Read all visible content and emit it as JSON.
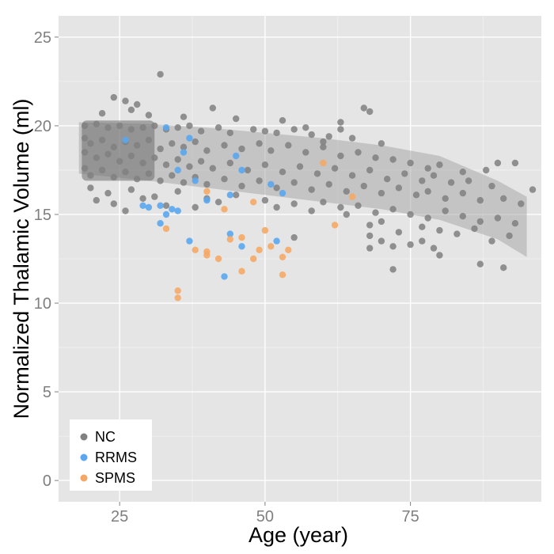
{
  "chart_data": {
    "type": "scatter",
    "title": "",
    "xlabel": "Age (year)",
    "ylabel": "Normalized Thalamic Volume (ml)",
    "xlim": [
      14.5,
      97.5
    ],
    "ylim": [
      -1.2,
      26.2
    ],
    "x_ticks": [
      25,
      50,
      75
    ],
    "y_ticks": [
      0,
      5,
      10,
      15,
      20,
      25
    ],
    "grid": true,
    "legend": {
      "placement": "bottom-left",
      "entries": [
        {
          "label": "NC",
          "color": "#808080"
        },
        {
          "label": "RRMS",
          "color": "#5aa7f0"
        },
        {
          "label": "SPMS",
          "color": "#f5a866"
        }
      ]
    },
    "confidence_band": {
      "x": [
        18,
        30,
        40,
        50,
        60,
        70,
        80,
        90,
        95
      ],
      "lower": [
        17.3,
        16.9,
        16.5,
        16.1,
        15.7,
        15.3,
        14.7,
        13.6,
        12.6
      ],
      "upper": [
        20.2,
        20.1,
        19.9,
        19.6,
        19.3,
        18.9,
        18.3,
        16.9,
        16.0
      ]
    },
    "series": [
      {
        "name": "NC",
        "color": "#808080",
        "points": [
          [
            32,
            22.9
          ],
          [
            24,
            21.6
          ],
          [
            26,
            21.4
          ],
          [
            28,
            21.2
          ],
          [
            41,
            21.0
          ],
          [
            67,
            21.0
          ],
          [
            68,
            20.8
          ],
          [
            22,
            20.7
          ],
          [
            27,
            20.9
          ],
          [
            30,
            20.6
          ],
          [
            36,
            20.5
          ],
          [
            45,
            20.4
          ],
          [
            53,
            20.3
          ],
          [
            63,
            20.2
          ],
          [
            19,
            20.0
          ],
          [
            21,
            20.1
          ],
          [
            23,
            19.9
          ],
          [
            25,
            20.0
          ],
          [
            27,
            19.8
          ],
          [
            29,
            19.9
          ],
          [
            31,
            20.0
          ],
          [
            33,
            19.8
          ],
          [
            35,
            19.9
          ],
          [
            37,
            20.0
          ],
          [
            39,
            19.7
          ],
          [
            42,
            19.9
          ],
          [
            44,
            19.6
          ],
          [
            48,
            19.8
          ],
          [
            50,
            19.7
          ],
          [
            52,
            19.6
          ],
          [
            55,
            19.8
          ],
          [
            58,
            19.5
          ],
          [
            61,
            19.4
          ],
          [
            65,
            19.3
          ],
          [
            70,
            19.0
          ],
          [
            19,
            19.3
          ],
          [
            20,
            19.0
          ],
          [
            22,
            19.2
          ],
          [
            24,
            18.8
          ],
          [
            26,
            19.1
          ],
          [
            28,
            18.9
          ],
          [
            30,
            19.2
          ],
          [
            32,
            18.7
          ],
          [
            34,
            19.0
          ],
          [
            36,
            18.8
          ],
          [
            38,
            19.1
          ],
          [
            40,
            18.6
          ],
          [
            43,
            18.9
          ],
          [
            46,
            18.7
          ],
          [
            49,
            19.0
          ],
          [
            51,
            18.6
          ],
          [
            54,
            18.9
          ],
          [
            57,
            18.5
          ],
          [
            60,
            18.8
          ],
          [
            63,
            18.3
          ],
          [
            66,
            18.5
          ],
          [
            69,
            18.2
          ],
          [
            72,
            18.1
          ],
          [
            75,
            17.9
          ],
          [
            78,
            17.6
          ],
          [
            80,
            17.8
          ],
          [
            84,
            17.4
          ],
          [
            88,
            17.5
          ],
          [
            19,
            18.5
          ],
          [
            21,
            18.2
          ],
          [
            23,
            18.4
          ],
          [
            25,
            18.0
          ],
          [
            27,
            18.3
          ],
          [
            29,
            17.9
          ],
          [
            31,
            18.2
          ],
          [
            33,
            17.8
          ],
          [
            35,
            18.1
          ],
          [
            37,
            17.7
          ],
          [
            39,
            18.0
          ],
          [
            41,
            17.6
          ],
          [
            44,
            17.9
          ],
          [
            47,
            17.5
          ],
          [
            50,
            17.8
          ],
          [
            53,
            17.4
          ],
          [
            56,
            17.7
          ],
          [
            59,
            17.3
          ],
          [
            62,
            17.6
          ],
          [
            65,
            17.2
          ],
          [
            68,
            17.5
          ],
          [
            71,
            17.0
          ],
          [
            74,
            17.3
          ],
          [
            77,
            16.9
          ],
          [
            79,
            17.2
          ],
          [
            82,
            16.8
          ],
          [
            85,
            16.9
          ],
          [
            89,
            16.6
          ],
          [
            19,
            17.6
          ],
          [
            20,
            17.2
          ],
          [
            22,
            17.5
          ],
          [
            24,
            17.1
          ],
          [
            26,
            17.4
          ],
          [
            28,
            17.0
          ],
          [
            30,
            17.3
          ],
          [
            32,
            16.9
          ],
          [
            34,
            17.2
          ],
          [
            36,
            16.8
          ],
          [
            38,
            17.1
          ],
          [
            40,
            16.7
          ],
          [
            43,
            17.0
          ],
          [
            46,
            16.6
          ],
          [
            49,
            16.9
          ],
          [
            52,
            16.5
          ],
          [
            55,
            16.8
          ],
          [
            58,
            16.4
          ],
          [
            61,
            16.7
          ],
          [
            64,
            16.3
          ],
          [
            67,
            16.6
          ],
          [
            70,
            16.2
          ],
          [
            73,
            16.5
          ],
          [
            76,
            16.1
          ],
          [
            78,
            16.3
          ],
          [
            81,
            15.9
          ],
          [
            84,
            16.2
          ],
          [
            87,
            15.8
          ],
          [
            91,
            15.9
          ],
          [
            94,
            15.6
          ],
          [
            96,
            16.4
          ],
          [
            93,
            17.9
          ],
          [
            90,
            17.9
          ],
          [
            20,
            16.5
          ],
          [
            23,
            16.2
          ],
          [
            27,
            16.4
          ],
          [
            31,
            16.0
          ],
          [
            35,
            16.3
          ],
          [
            40,
            15.9
          ],
          [
            45,
            16.1
          ],
          [
            50,
            15.8
          ],
          [
            55,
            15.6
          ],
          [
            60,
            15.7
          ],
          [
            63,
            15.4
          ],
          [
            66,
            15.5
          ],
          [
            69,
            15.1
          ],
          [
            72,
            15.3
          ],
          [
            75,
            15.0
          ],
          [
            78,
            14.8
          ],
          [
            81,
            15.2
          ],
          [
            84,
            14.9
          ],
          [
            87,
            14.6
          ],
          [
            90,
            14.8
          ],
          [
            93,
            14.5
          ],
          [
            21,
            15.8
          ],
          [
            24,
            15.6
          ],
          [
            26,
            15.2
          ],
          [
            29,
            15.9
          ],
          [
            33,
            15.5
          ],
          [
            38,
            15.4
          ],
          [
            42,
            15.7
          ],
          [
            52,
            15.4
          ],
          [
            58,
            15.2
          ],
          [
            64,
            15.0
          ],
          [
            68,
            14.4
          ],
          [
            70,
            14.6
          ],
          [
            73,
            14.0
          ],
          [
            77,
            14.3
          ],
          [
            80,
            14.1
          ],
          [
            83,
            13.9
          ],
          [
            86,
            14.2
          ],
          [
            89,
            13.5
          ],
          [
            92,
            13.8
          ],
          [
            55,
            13.7
          ],
          [
            68,
            13.8
          ],
          [
            70,
            13.5
          ],
          [
            72,
            13.2
          ],
          [
            68,
            13.1
          ],
          [
            75,
            13.3
          ],
          [
            77,
            13.5
          ],
          [
            79,
            13.1
          ],
          [
            80,
            12.7
          ],
          [
            72,
            11.9
          ],
          [
            87,
            12.2
          ],
          [
            91,
            12.0
          ],
          [
            63,
            19.8
          ],
          [
            57,
            19.9
          ],
          [
            60,
            19.1
          ]
        ]
      },
      {
        "name": "RRMS",
        "color": "#5aa7f0",
        "points": [
          [
            26,
            19.2
          ],
          [
            33,
            19.9
          ],
          [
            37,
            19.3
          ],
          [
            36,
            18.5
          ],
          [
            35,
            17.5
          ],
          [
            45,
            18.3
          ],
          [
            32,
            15.5
          ],
          [
            29,
            15.5
          ],
          [
            30,
            15.4
          ],
          [
            34,
            15.3
          ],
          [
            33,
            15.0
          ],
          [
            35,
            15.2
          ],
          [
            32,
            14.5
          ],
          [
            40,
            15.8
          ],
          [
            44,
            16.1
          ],
          [
            51,
            16.7
          ],
          [
            53,
            16.2
          ],
          [
            37,
            13.5
          ],
          [
            44,
            13.9
          ],
          [
            46,
            13.2
          ],
          [
            52,
            13.5
          ],
          [
            43,
            11.5
          ],
          [
            46,
            17.5
          ],
          [
            38,
            16.9
          ]
        ]
      },
      {
        "name": "SPMS",
        "color": "#f5a866",
        "points": [
          [
            60,
            17.9
          ],
          [
            65,
            16.0
          ],
          [
            48,
            15.7
          ],
          [
            43,
            15.3
          ],
          [
            40,
            16.3
          ],
          [
            33,
            14.2
          ],
          [
            46,
            13.7
          ],
          [
            44,
            13.6
          ],
          [
            50,
            14.1
          ],
          [
            49,
            13.0
          ],
          [
            51,
            13.2
          ],
          [
            54,
            13.0
          ],
          [
            53,
            12.6
          ],
          [
            48,
            12.5
          ],
          [
            42,
            12.5
          ],
          [
            40,
            12.7
          ],
          [
            38,
            13.0
          ],
          [
            40,
            12.9
          ],
          [
            46,
            11.8
          ],
          [
            53,
            11.6
          ],
          [
            35,
            10.7
          ],
          [
            35,
            10.3
          ],
          [
            62,
            14.4
          ]
        ]
      }
    ]
  }
}
